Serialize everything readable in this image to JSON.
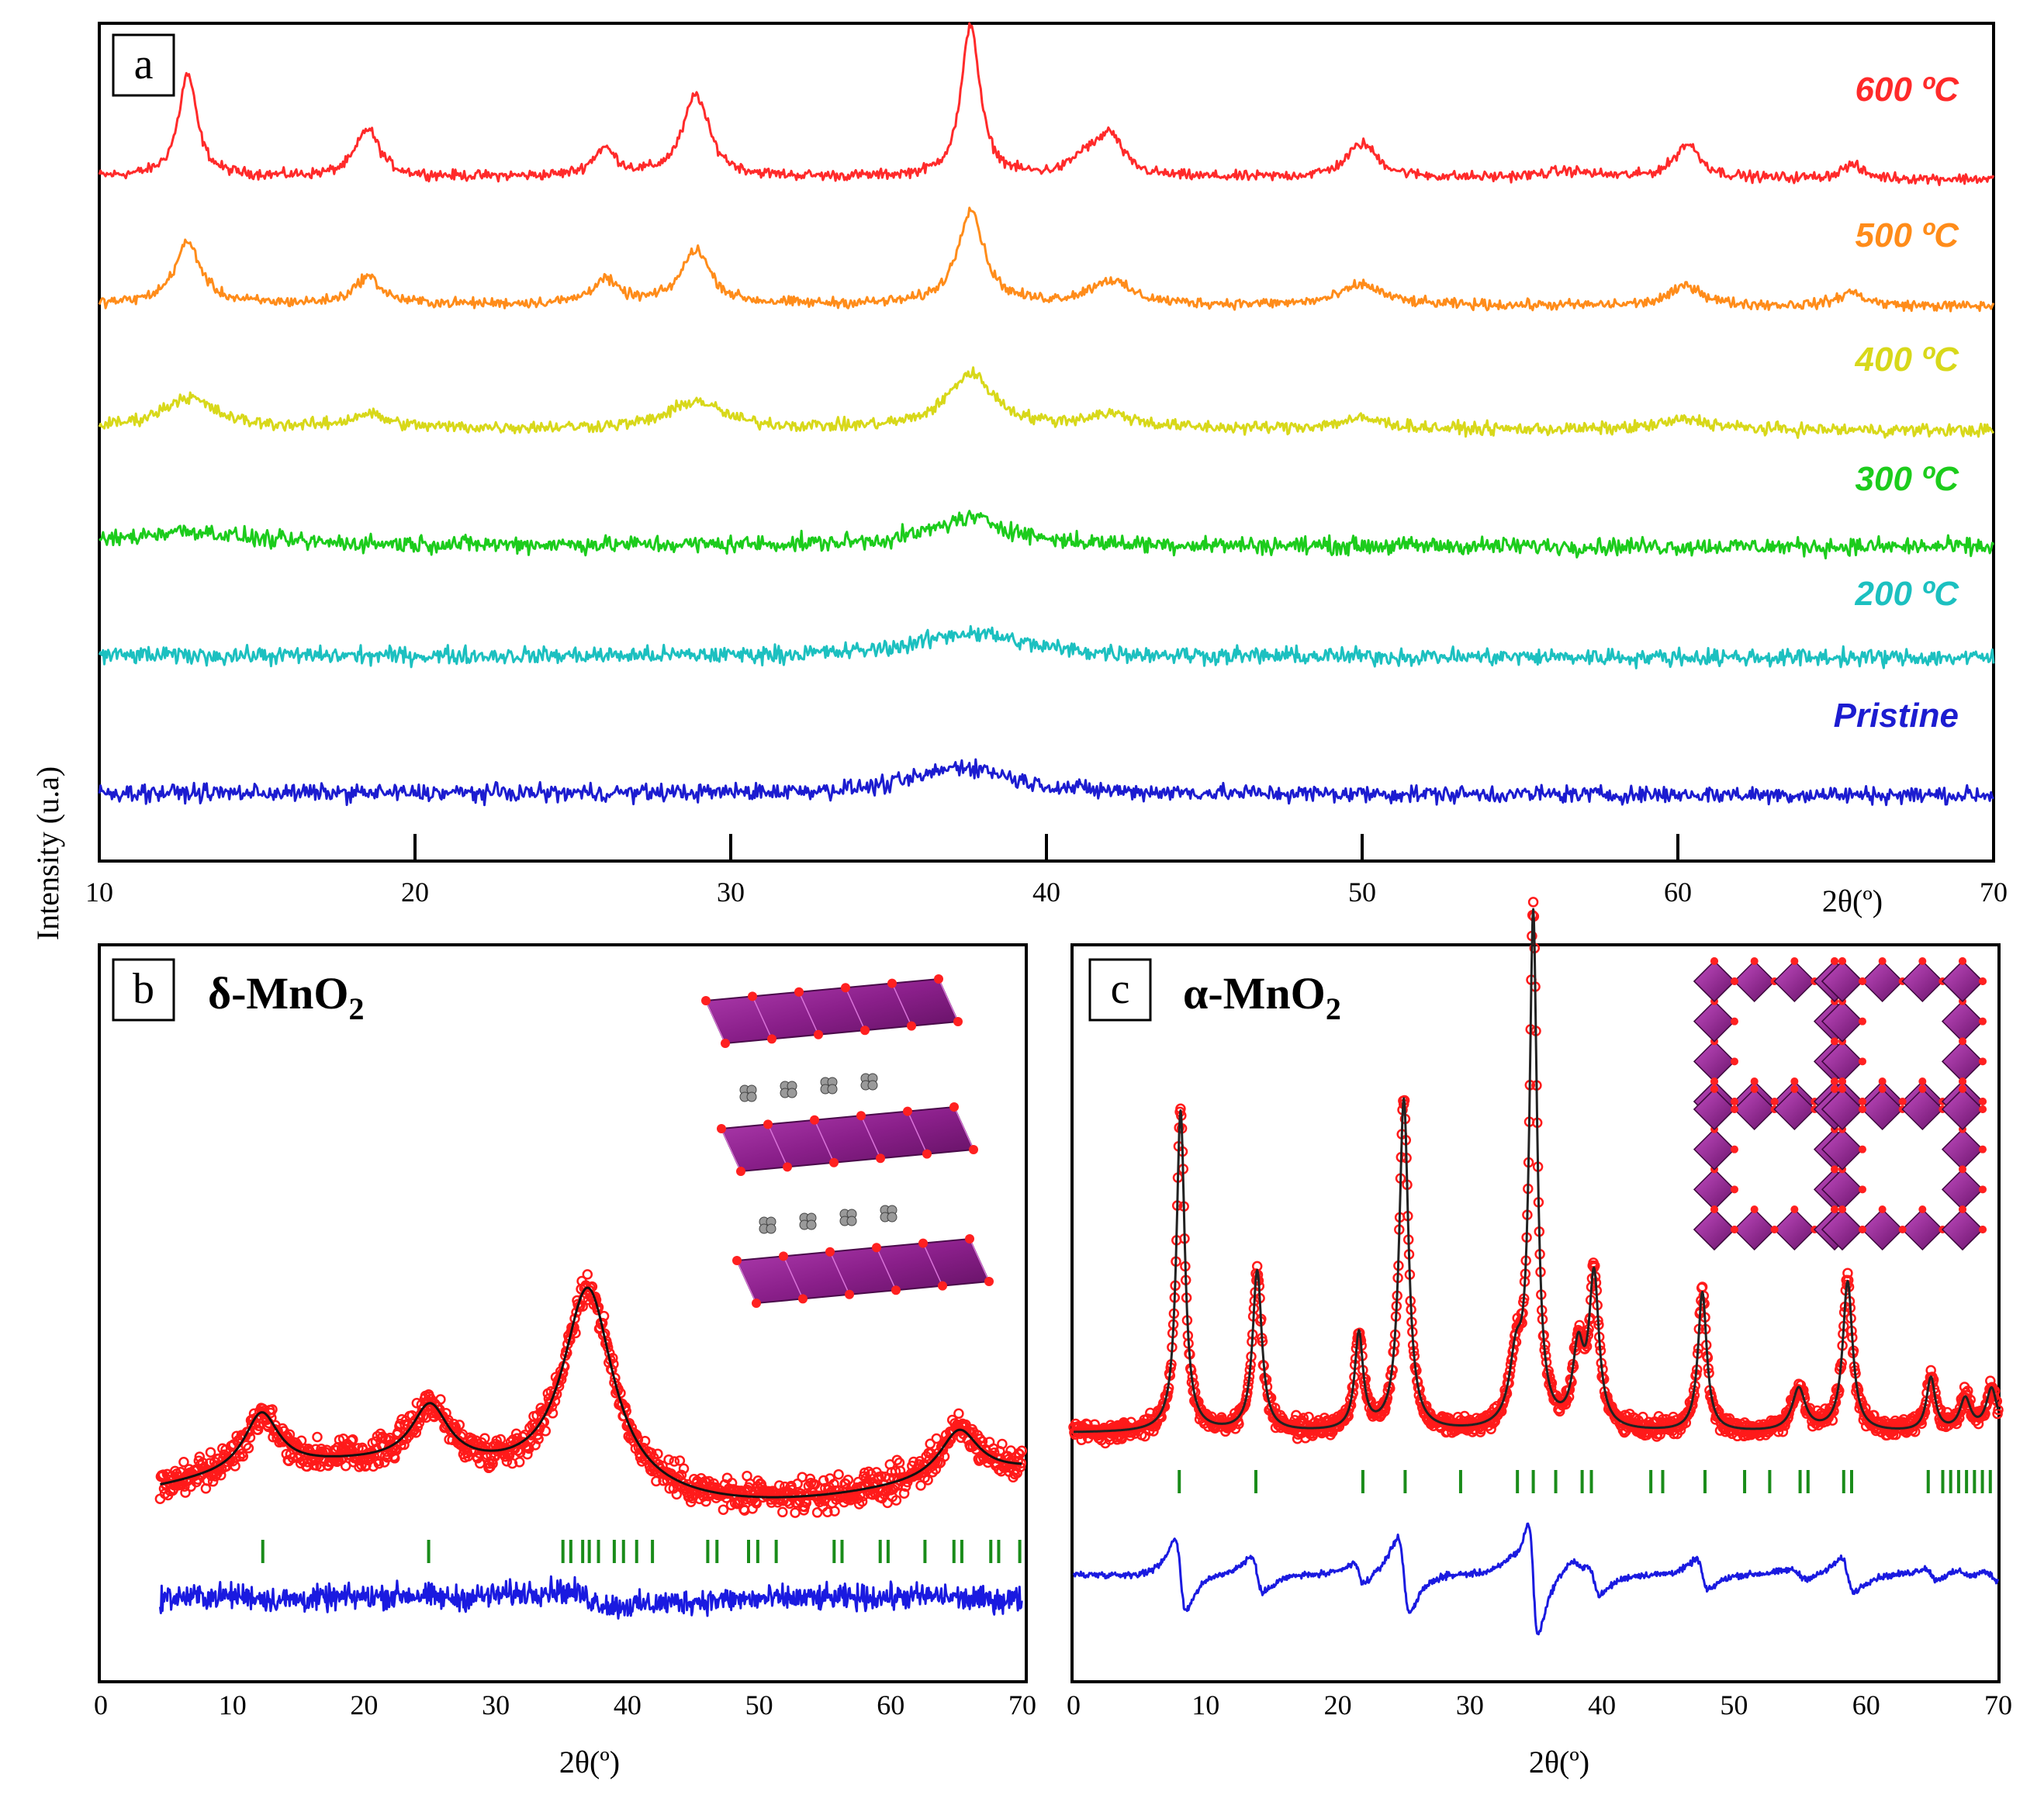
{
  "figure": {
    "ylabel": "Intensity (u.a)",
    "panel_a_label": "a",
    "panel_b_label": "b",
    "panel_c_label": "c",
    "panel_b_phase_base": "δ-MnO",
    "panel_b_phase_sub": "2",
    "panel_c_phase_base": "α-MnO",
    "panel_c_phase_sub": "2",
    "a_xlabel": "2θ(º)",
    "b_xlabel": "2θ(º)",
    "c_xlabel": "2θ(º)"
  },
  "chart_data": [
    {
      "type": "line",
      "panel": "a",
      "xlabel": "2θ(º)",
      "ylabel": "Intensity (u.a)",
      "xlim": [
        10,
        70
      ],
      "xticks": [
        10,
        20,
        30,
        40,
        50,
        60,
        70
      ],
      "tick_labels": [
        "10",
        "20",
        "30",
        "40",
        "50",
        "60",
        "70"
      ],
      "series": [
        {
          "name": "600 ºC",
          "color": "#ff2a2a",
          "noise": 1.5,
          "peaks": [
            [
              12.8,
              30,
              0.35
            ],
            [
              18.5,
              14,
              0.45
            ],
            [
              26.0,
              8,
              0.45
            ],
            [
              28.9,
              24,
              0.5
            ],
            [
              37.6,
              45,
              0.35
            ],
            [
              41.2,
              5,
              0.5
            ],
            [
              42.0,
              12,
              0.5
            ],
            [
              50.0,
              10,
              0.6
            ],
            [
              56.5,
              2,
              1.0
            ],
            [
              60.3,
              10,
              0.5
            ],
            [
              65.5,
              4,
              0.4
            ]
          ]
        },
        {
          "name": "500 ºC",
          "color": "#ff8c1a",
          "noise": 1.5,
          "peaks": [
            [
              12.8,
              18,
              0.5
            ],
            [
              18.5,
              8,
              0.5
            ],
            [
              26.0,
              7,
              0.5
            ],
            [
              28.9,
              16,
              0.55
            ],
            [
              37.6,
              28,
              0.5
            ],
            [
              42.0,
              7,
              0.8
            ],
            [
              50.0,
              6,
              0.8
            ],
            [
              60.3,
              6,
              0.6
            ],
            [
              65.5,
              4,
              0.5
            ]
          ]
        },
        {
          "name": "400 ºC",
          "color": "#d8d81a",
          "noise": 1.8,
          "peaks": [
            [
              12.8,
              9,
              1.0
            ],
            [
              18.5,
              4,
              0.7
            ],
            [
              28.9,
              8,
              1.0
            ],
            [
              37.6,
              16,
              0.9
            ],
            [
              42.0,
              4,
              1.0
            ],
            [
              50.0,
              3,
              1.0
            ],
            [
              60.3,
              3,
              1.0
            ]
          ]
        },
        {
          "name": "300 ºC",
          "color": "#1ccc1c",
          "noise": 2.5,
          "peaks": [
            [
              12.8,
              4,
              2.0
            ],
            [
              37.6,
              8,
              1.5
            ]
          ]
        },
        {
          "name": "200 ºC",
          "color": "#1cc0c0",
          "noise": 2.5,
          "peaks": [
            [
              37.6,
              7,
              2.0
            ]
          ]
        },
        {
          "name": "Pristine",
          "color": "#1c1cd0",
          "noise": 2.5,
          "peaks": [
            [
              37.4,
              8,
              1.8
            ]
          ]
        }
      ]
    },
    {
      "type": "scatter",
      "panel": "b",
      "title": "δ-MnO2",
      "xlabel": "2θ(º)",
      "xlim": [
        0,
        70
      ],
      "xticks": [
        0,
        10,
        20,
        30,
        40,
        50,
        60,
        70
      ],
      "tick_labels": [
        "0",
        "10",
        "20",
        "30",
        "40",
        "50",
        "60",
        "70"
      ],
      "data_range": [
        4.5,
        70
      ],
      "baseline": 8,
      "peaks": [
        [
          12.2,
          12,
          1.6
        ],
        [
          25.0,
          12,
          1.7
        ],
        [
          37.0,
          42,
          2.3
        ],
        [
          65.2,
          10,
          1.8
        ]
      ],
      "reflection_marks": [
        12.3,
        24.9,
        35.1,
        35.7,
        36.6,
        37.1,
        37.8,
        39.0,
        39.7,
        40.7,
        41.9,
        46.1,
        46.8,
        49.2,
        49.9,
        51.3,
        55.7,
        56.3,
        59.2,
        59.8,
        62.6,
        64.8,
        65.4,
        67.6,
        68.2,
        69.8
      ],
      "observed_color": "#ff1a1a",
      "calculated_color": "#111111",
      "difference_color": "#1a1ae0",
      "marks_color": "#1a8c1a"
    },
    {
      "type": "scatter",
      "panel": "c",
      "title": "α-MnO2",
      "xlabel": "2θ(º)",
      "xlim": [
        0,
        70
      ],
      "xticks": [
        0,
        10,
        20,
        30,
        40,
        50,
        60,
        70
      ],
      "tick_labels": [
        "0",
        "10",
        "20",
        "30",
        "40",
        "50",
        "60",
        "70"
      ],
      "data_range": [
        0,
        70
      ],
      "baseline": 3,
      "peaks": [
        [
          8.1,
          60,
          0.38
        ],
        [
          13.9,
          30,
          0.42
        ],
        [
          21.6,
          18,
          0.38
        ],
        [
          25.0,
          62,
          0.42
        ],
        [
          33.5,
          12,
          0.6
        ],
        [
          34.8,
          95,
          0.35
        ],
        [
          38.2,
          14,
          0.5
        ],
        [
          39.4,
          28,
          0.45
        ],
        [
          47.6,
          26,
          0.4
        ],
        [
          54.9,
          8,
          0.6
        ],
        [
          58.6,
          28,
          0.45
        ],
        [
          64.9,
          10,
          0.4
        ],
        [
          67.5,
          6,
          0.5
        ],
        [
          69.5,
          8,
          0.5
        ]
      ],
      "reflection_marks": [
        8.0,
        13.8,
        21.9,
        25.1,
        29.3,
        33.6,
        34.8,
        36.5,
        38.5,
        39.2,
        43.7,
        44.6,
        47.8,
        50.8,
        52.7,
        55.0,
        55.6,
        58.3,
        58.9,
        64.7,
        65.8,
        66.4,
        67.0,
        67.6,
        68.2,
        68.8,
        69.4
      ],
      "observed_color": "#ff1a1a",
      "calculated_color": "#222222",
      "difference_color": "#1a1ae0",
      "marks_color": "#1a8c1a"
    }
  ]
}
